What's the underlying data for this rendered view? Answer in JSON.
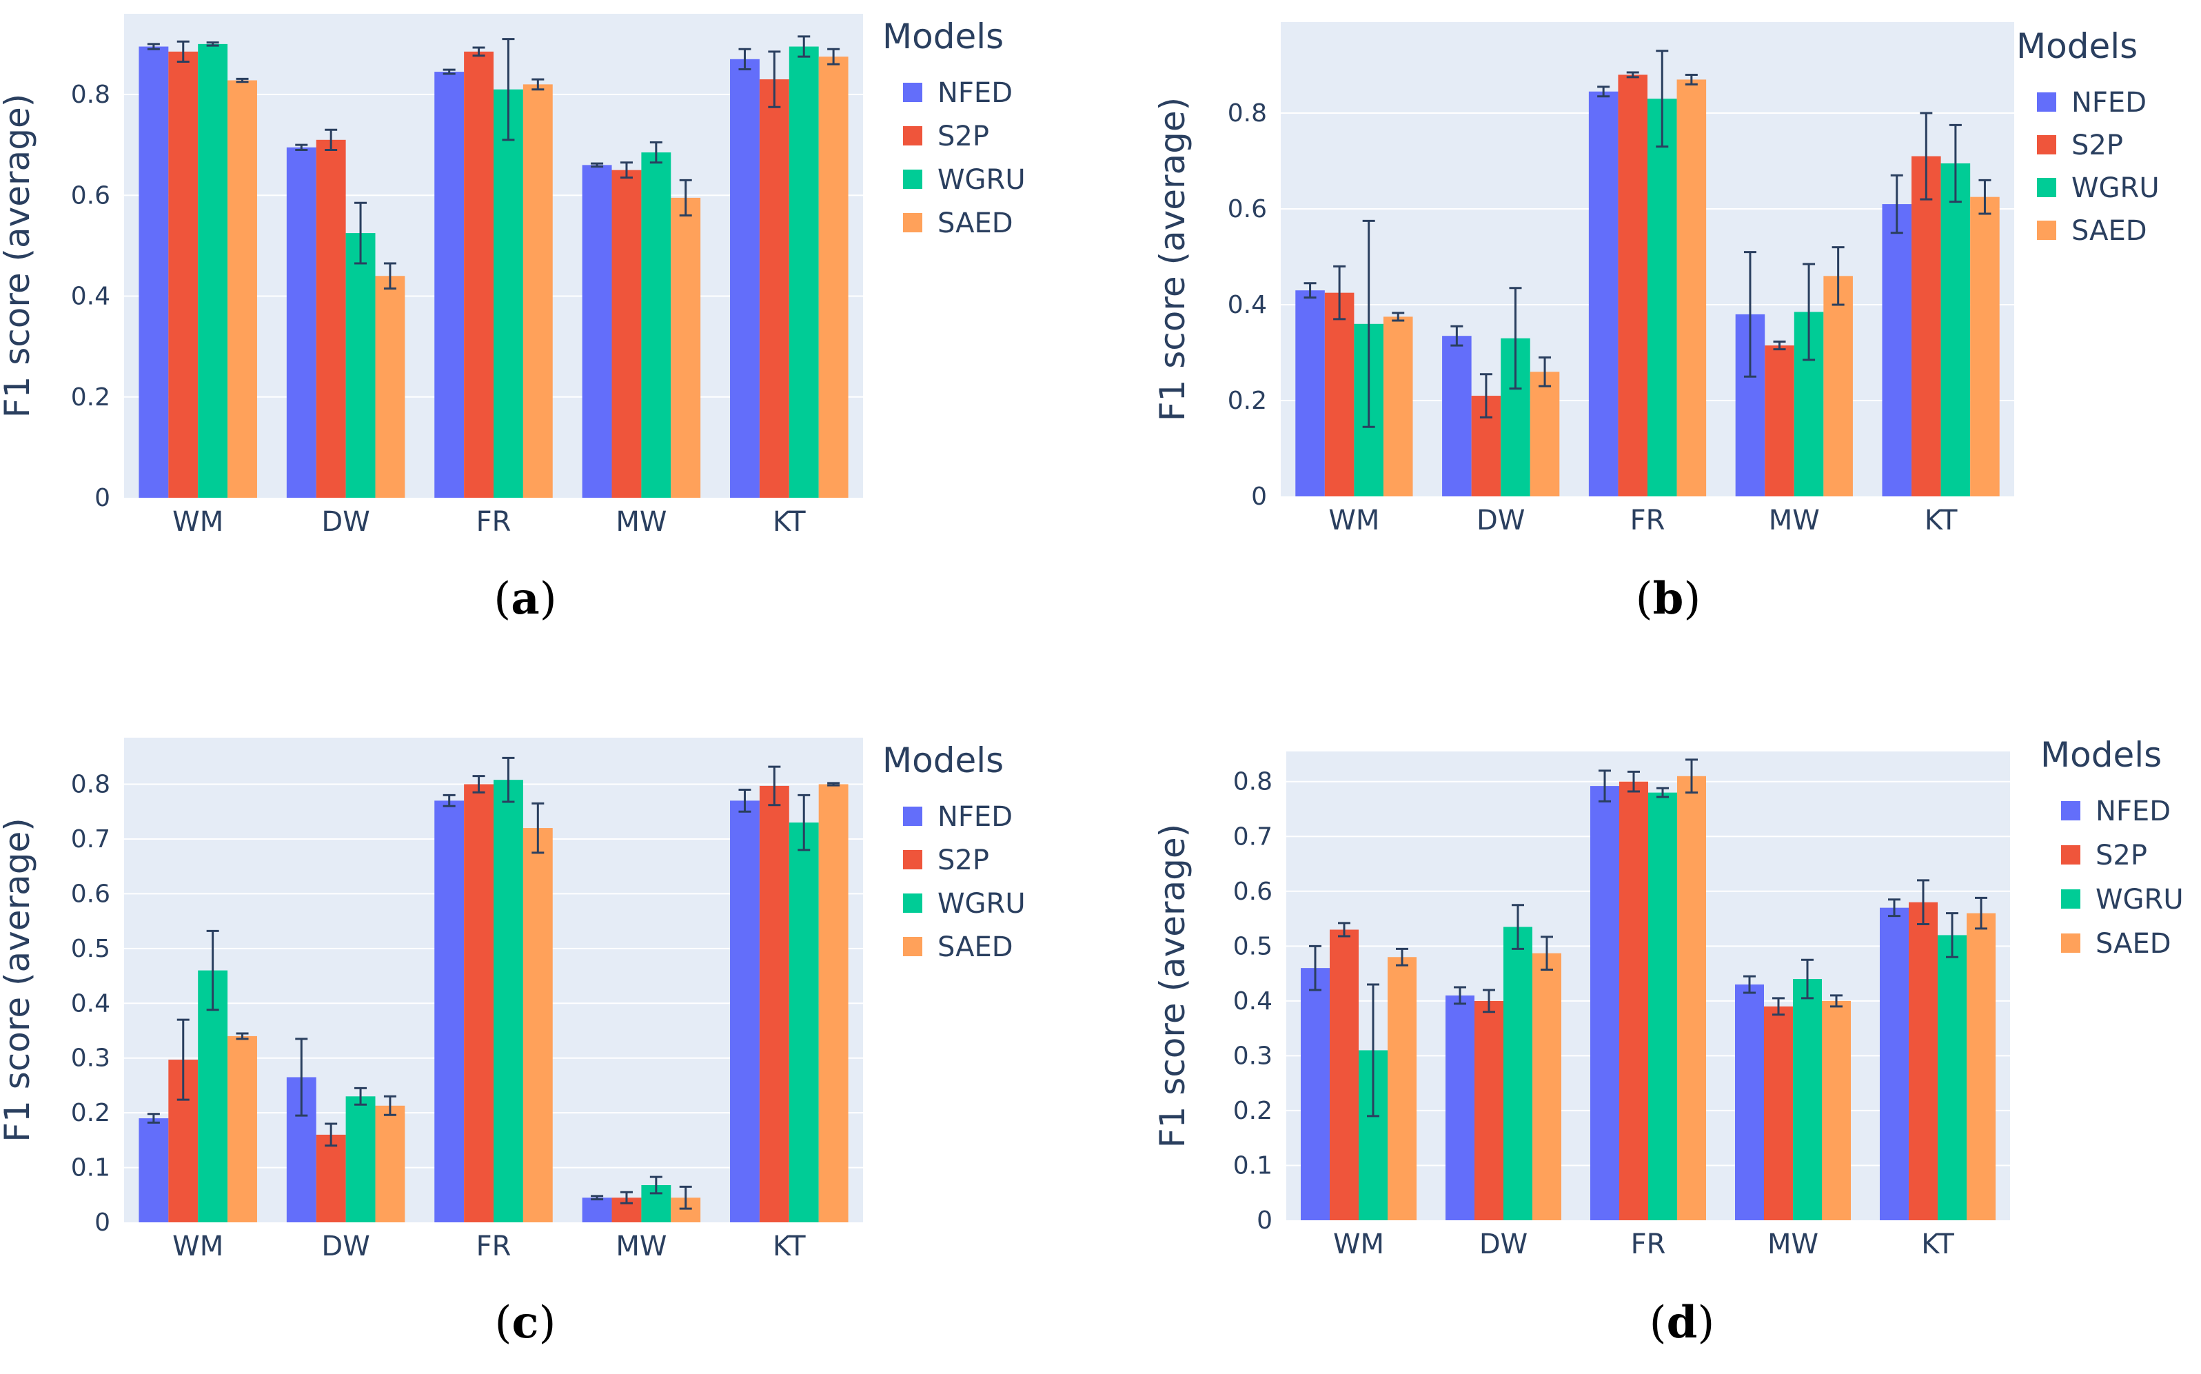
{
  "legend_title": "Models",
  "colors": {
    "NFED": "#636efa",
    "S2P": "#ef553b",
    "WGRU": "#00cc96",
    "SAED": "#ffa15a",
    "plot_bg": "#e5ecf6",
    "axis_text": "#2a3f5f",
    "error_bar": "#2a3f5f"
  },
  "chart_data": [
    {
      "type": "bar",
      "caption_letter": "a",
      "ylabel": "F1 score (average)",
      "ylim": [
        0,
        0.96
      ],
      "yticks": [
        0,
        0.2,
        0.4,
        0.6,
        0.8
      ],
      "ytick_labels": [
        "0",
        "0.2",
        "0.4",
        "0.6",
        "0.8"
      ],
      "categories": [
        "WM",
        "DW",
        "FR",
        "MW",
        "KT"
      ],
      "series": [
        {
          "name": "NFED",
          "values": [
            0.895,
            0.695,
            0.845,
            0.66,
            0.87
          ],
          "errors": [
            0.005,
            0.005,
            0.004,
            0.003,
            0.02
          ]
        },
        {
          "name": "S2P",
          "values": [
            0.885,
            0.71,
            0.885,
            0.65,
            0.83
          ],
          "errors": [
            0.02,
            0.02,
            0.008,
            0.015,
            0.055
          ]
        },
        {
          "name": "WGRU",
          "values": [
            0.9,
            0.525,
            0.81,
            0.685,
            0.895
          ],
          "errors": [
            0.003,
            0.06,
            0.1,
            0.02,
            0.02
          ]
        },
        {
          "name": "SAED",
          "values": [
            0.828,
            0.44,
            0.82,
            0.595,
            0.875
          ],
          "errors": [
            0.003,
            0.025,
            0.01,
            0.035,
            0.015
          ]
        }
      ]
    },
    {
      "type": "bar",
      "caption_letter": "b",
      "ylabel": "F1 score (average)",
      "ylim": [
        0,
        0.99
      ],
      "yticks": [
        0,
        0.2,
        0.4,
        0.6,
        0.8
      ],
      "ytick_labels": [
        "0",
        "0.2",
        "0.4",
        "0.6",
        "0.8"
      ],
      "categories": [
        "WM",
        "DW",
        "FR",
        "MW",
        "KT"
      ],
      "series": [
        {
          "name": "NFED",
          "values": [
            0.43,
            0.335,
            0.845,
            0.38,
            0.61
          ],
          "errors": [
            0.015,
            0.02,
            0.01,
            0.13,
            0.06
          ]
        },
        {
          "name": "S2P",
          "values": [
            0.425,
            0.21,
            0.88,
            0.315,
            0.71
          ],
          "errors": [
            0.055,
            0.045,
            0.005,
            0.008,
            0.09
          ]
        },
        {
          "name": "WGRU",
          "values": [
            0.36,
            0.33,
            0.83,
            0.385,
            0.695
          ],
          "errors": [
            0.215,
            0.105,
            0.1,
            0.1,
            0.08
          ]
        },
        {
          "name": "SAED",
          "values": [
            0.375,
            0.26,
            0.87,
            0.46,
            0.625
          ],
          "errors": [
            0.008,
            0.03,
            0.01,
            0.06,
            0.035
          ]
        }
      ]
    },
    {
      "type": "bar",
      "caption_letter": "c",
      "ylabel": "F1 score (average)",
      "ylim": [
        0,
        0.885
      ],
      "yticks": [
        0,
        0.1,
        0.2,
        0.3,
        0.4,
        0.5,
        0.6,
        0.7,
        0.8
      ],
      "ytick_labels": [
        "0",
        "0.1",
        "0.2",
        "0.3",
        "0.4",
        "0.5",
        "0.6",
        "0.7",
        "0.8"
      ],
      "categories": [
        "WM",
        "DW",
        "FR",
        "MW",
        "KT"
      ],
      "series": [
        {
          "name": "NFED",
          "values": [
            0.19,
            0.265,
            0.77,
            0.045,
            0.77
          ],
          "errors": [
            0.008,
            0.07,
            0.01,
            0.003,
            0.02
          ]
        },
        {
          "name": "S2P",
          "values": [
            0.297,
            0.16,
            0.8,
            0.045,
            0.797
          ],
          "errors": [
            0.073,
            0.02,
            0.015,
            0.01,
            0.035
          ]
        },
        {
          "name": "WGRU",
          "values": [
            0.46,
            0.23,
            0.808,
            0.068,
            0.73
          ],
          "errors": [
            0.072,
            0.015,
            0.04,
            0.015,
            0.05
          ]
        },
        {
          "name": "SAED",
          "values": [
            0.34,
            0.213,
            0.72,
            0.045,
            0.8
          ],
          "errors": [
            0.005,
            0.017,
            0.045,
            0.02,
            0.002
          ]
        }
      ]
    },
    {
      "type": "bar",
      "caption_letter": "d",
      "ylabel": "F1 score (average)",
      "ylim": [
        0,
        0.855
      ],
      "yticks": [
        0,
        0.1,
        0.2,
        0.3,
        0.4,
        0.5,
        0.6,
        0.7,
        0.8
      ],
      "ytick_labels": [
        "0",
        "0.1",
        "0.2",
        "0.3",
        "0.4",
        "0.5",
        "0.6",
        "0.7",
        "0.8"
      ],
      "categories": [
        "WM",
        "DW",
        "FR",
        "MW",
        "KT"
      ],
      "series": [
        {
          "name": "NFED",
          "values": [
            0.46,
            0.41,
            0.792,
            0.43,
            0.57
          ],
          "errors": [
            0.04,
            0.015,
            0.028,
            0.015,
            0.015
          ]
        },
        {
          "name": "S2P",
          "values": [
            0.53,
            0.4,
            0.8,
            0.39,
            0.58
          ],
          "errors": [
            0.012,
            0.02,
            0.018,
            0.015,
            0.04
          ]
        },
        {
          "name": "WGRU",
          "values": [
            0.31,
            0.535,
            0.78,
            0.44,
            0.52
          ],
          "errors": [
            0.12,
            0.04,
            0.008,
            0.035,
            0.04
          ]
        },
        {
          "name": "SAED",
          "values": [
            0.48,
            0.487,
            0.81,
            0.4,
            0.56
          ],
          "errors": [
            0.015,
            0.03,
            0.03,
            0.01,
            0.028
          ]
        }
      ]
    }
  ]
}
